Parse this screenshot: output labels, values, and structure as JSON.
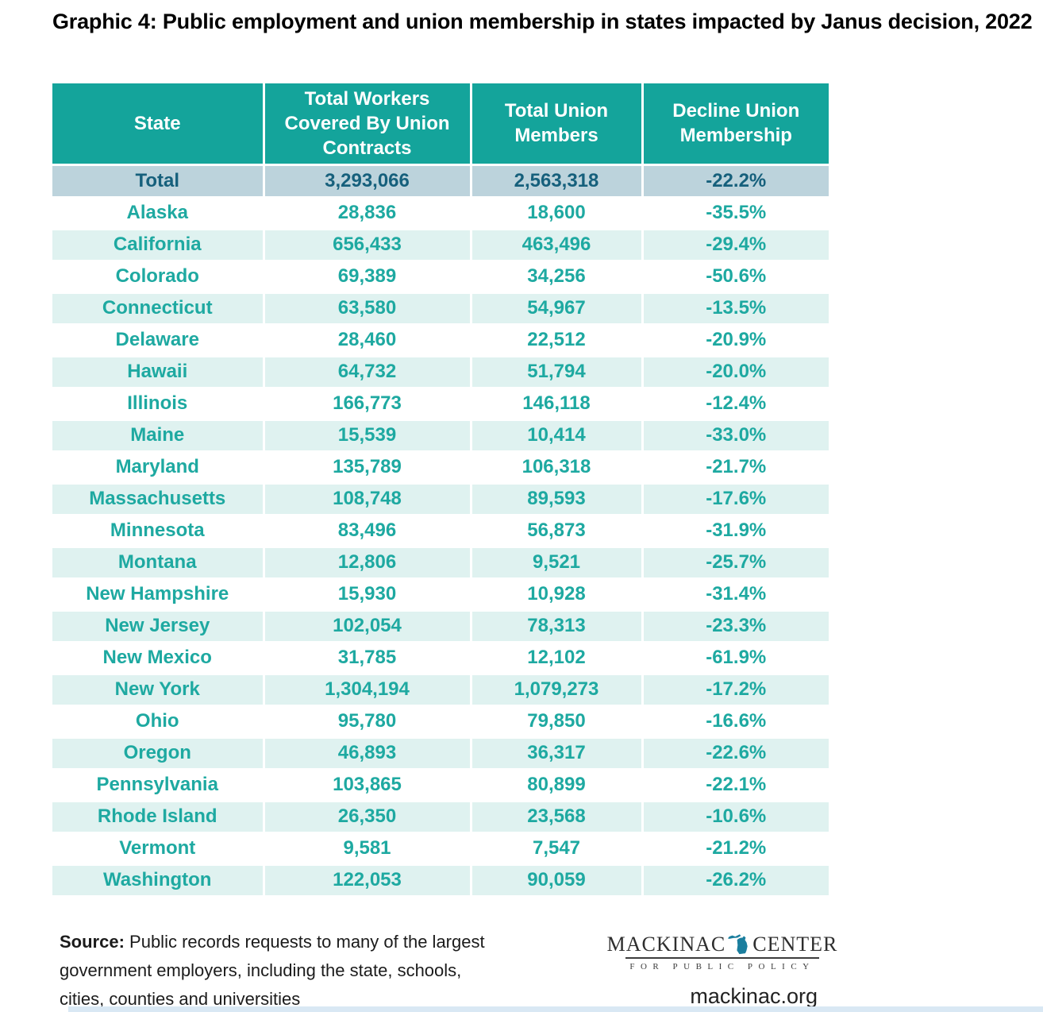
{
  "title": "Graphic 4: Public employment and union membership in states impacted by Janus decision, 2022",
  "chart_data": {
    "type": "table",
    "title": "Graphic 4: Public employment and union membership in states impacted by Janus decision, 2022",
    "columns": [
      "State",
      "Total Workers Covered By Union Contracts",
      "Total Union Members",
      "Decline Union Membership"
    ],
    "total_row": {
      "state": "Total",
      "workers": "3,293,066",
      "members": "2,563,318",
      "decline": "-22.2%"
    },
    "rows": [
      {
        "state": "Alaska",
        "workers": "28,836",
        "members": "18,600",
        "decline": "-35.5%"
      },
      {
        "state": "California",
        "workers": "656,433",
        "members": "463,496",
        "decline": "-29.4%"
      },
      {
        "state": "Colorado",
        "workers": "69,389",
        "members": "34,256",
        "decline": "-50.6%"
      },
      {
        "state": "Connecticut",
        "workers": "63,580",
        "members": "54,967",
        "decline": "-13.5%"
      },
      {
        "state": "Delaware",
        "workers": "28,460",
        "members": "22,512",
        "decline": "-20.9%"
      },
      {
        "state": "Hawaii",
        "workers": "64,732",
        "members": "51,794",
        "decline": "-20.0%"
      },
      {
        "state": "Illinois",
        "workers": "166,773",
        "members": "146,118",
        "decline": "-12.4%"
      },
      {
        "state": "Maine",
        "workers": "15,539",
        "members": "10,414",
        "decline": "-33.0%"
      },
      {
        "state": "Maryland",
        "workers": "135,789",
        "members": "106,318",
        "decline": "-21.7%"
      },
      {
        "state": "Massachusetts",
        "workers": "108,748",
        "members": "89,593",
        "decline": "-17.6%"
      },
      {
        "state": "Minnesota",
        "workers": "83,496",
        "members": "56,873",
        "decline": "-31.9%"
      },
      {
        "state": "Montana",
        "workers": "12,806",
        "members": "9,521",
        "decline": "-25.7%"
      },
      {
        "state": "New Hampshire",
        "workers": "15,930",
        "members": "10,928",
        "decline": "-31.4%"
      },
      {
        "state": "New Jersey",
        "workers": "102,054",
        "members": "78,313",
        "decline": "-23.3%"
      },
      {
        "state": "New Mexico",
        "workers": "31,785",
        "members": "12,102",
        "decline": "-61.9%"
      },
      {
        "state": "New York",
        "workers": "1,304,194",
        "members": "1,079,273",
        "decline": "-17.2%"
      },
      {
        "state": "Ohio",
        "workers": "95,780",
        "members": "79,850",
        "decline": "-16.6%"
      },
      {
        "state": "Oregon",
        "workers": "46,893",
        "members": "36,317",
        "decline": "-22.6%"
      },
      {
        "state": "Pennsylvania",
        "workers": "103,865",
        "members": "80,899",
        "decline": "-22.1%"
      },
      {
        "state": "Rhode Island",
        "workers": "26,350",
        "members": "23,568",
        "decline": "-10.6%"
      },
      {
        "state": "Vermont",
        "workers": "9,581",
        "members": "7,547",
        "decline": "-21.2%"
      },
      {
        "state": "Washington",
        "workers": "122,053",
        "members": "90,059",
        "decline": "-26.2%"
      }
    ]
  },
  "footer": {
    "source_label": "Source:",
    "source_text": " Public records requests to many of the largest government employers, including the state, schools, cities, counties and universities",
    "logo": {
      "name_left": "MACKINAC",
      "name_right": "CENTER",
      "tagline": "FOR PUBLIC POLICY",
      "website": "mackinac.org",
      "michigan_icon": "michigan-state-icon"
    }
  },
  "colors": {
    "header_bg": "#14A49B",
    "stripe_bg": "#DFF2F0",
    "total_row_bg": "#BCD3DC",
    "total_row_text": "#16607C",
    "cell_text": "#1EA9A1",
    "logo_michigan": "#1B7E9E",
    "bottom_strip": "#D9E8F4"
  }
}
